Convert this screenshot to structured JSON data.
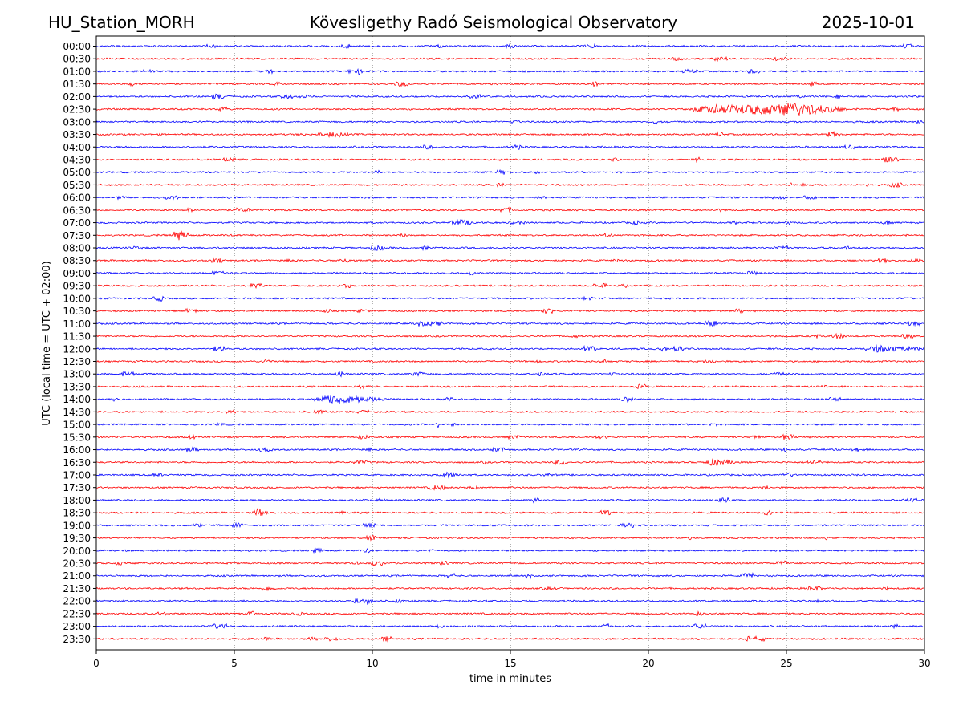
{
  "header": {
    "station": "HU_Station_MORH",
    "observatory": "Kövesligethy Radó Seismological Observatory",
    "date": "2025-10-01"
  },
  "chart_data": {
    "type": "line",
    "subtype": "helicorder",
    "title": "Kövesligethy Radó Seismological Observatory",
    "xlabel": "time in minutes",
    "ylabel": "UTC (local time = UTC + 02:00)",
    "xlim": [
      0,
      30
    ],
    "x_ticks": [
      0,
      5,
      10,
      15,
      20,
      25,
      30
    ],
    "x_tick_labels": [
      "0",
      "5",
      "10",
      "15",
      "20",
      "25",
      "30"
    ],
    "vertical_gridlines_at": [
      5,
      10,
      15,
      20,
      25
    ],
    "grid_style": "dotted",
    "trace_colors": [
      "#0000ff",
      "#ff0000"
    ],
    "rows": [
      "00:00",
      "00:30",
      "01:00",
      "01:30",
      "02:00",
      "02:30",
      "03:00",
      "03:30",
      "04:00",
      "04:30",
      "05:00",
      "05:30",
      "06:00",
      "06:30",
      "07:00",
      "07:30",
      "08:00",
      "08:30",
      "09:00",
      "09:30",
      "10:00",
      "10:30",
      "11:00",
      "11:30",
      "12:00",
      "12:30",
      "13:00",
      "13:30",
      "14:00",
      "14:30",
      "15:00",
      "15:30",
      "16:00",
      "16:30",
      "17:00",
      "17:30",
      "18:00",
      "18:30",
      "19:00",
      "19:30",
      "20:00",
      "20:30",
      "21:00",
      "21:30",
      "22:00",
      "22:30",
      "23:00",
      "23:30"
    ],
    "events": [
      {
        "row": "02:30",
        "start_min": 21.6,
        "end_min": 27.2,
        "peak_min": 25.3,
        "amplitude": 7
      },
      {
        "row": "07:00",
        "start_min": 12.8,
        "end_min": 13.8,
        "peak_min": 13.2,
        "amplitude": 3
      },
      {
        "row": "12:00",
        "start_min": 27.8,
        "end_min": 30.0,
        "peak_min": 28.3,
        "amplitude": 3.5
      },
      {
        "row": "14:00",
        "start_min": 7.9,
        "end_min": 10.5,
        "peak_min": 8.6,
        "amplitude": 5
      },
      {
        "row": "14:00",
        "start_min": 19.0,
        "end_min": 19.6,
        "peak_min": 19.2,
        "amplitude": 2.5
      },
      {
        "row": "16:30",
        "start_min": 22.0,
        "end_min": 23.2,
        "peak_min": 22.4,
        "amplitude": 4
      },
      {
        "row": "17:00",
        "start_min": 12.4,
        "end_min": 13.2,
        "peak_min": 12.7,
        "amplitude": 3
      }
    ]
  }
}
